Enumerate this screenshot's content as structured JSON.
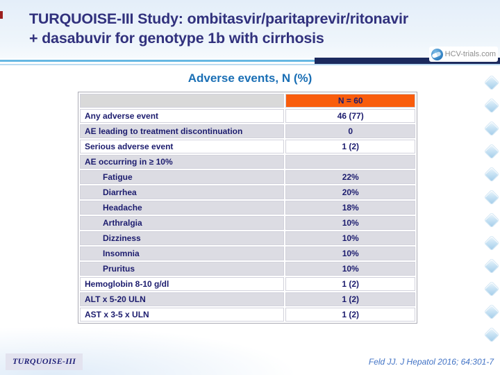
{
  "slide": {
    "title_line1": "TURQUOISE-III Study: ombitasvir/paritaprevir/ritonavir",
    "title_line2": "+ dasabuvir for genotype 1b with cirrhosis",
    "subtitle": "Adverse events, N (%)",
    "logo_text": "HCV-trials.com",
    "footer_label": "TURQUOISE-III",
    "citation": "Feld JJ. J Hepatol 2016; 64:301-7"
  },
  "table": {
    "header": {
      "col1": "",
      "col2": "N = 60"
    },
    "rows": [
      {
        "label": "Any adverse event",
        "value": "46 (77)",
        "shade": "white",
        "indent": false
      },
      {
        "label": "AE leading to treatment discontinuation",
        "value": "0",
        "shade": "gray",
        "indent": false
      },
      {
        "label": "Serious adverse event",
        "value": "1 (2)",
        "shade": "white",
        "indent": false
      },
      {
        "label": "AE occurring in ≥ 10%",
        "value": "",
        "shade": "gray",
        "indent": false
      },
      {
        "label": "Fatigue",
        "value": "22%",
        "shade": "gray",
        "indent": true
      },
      {
        "label": "Diarrhea",
        "value": "20%",
        "shade": "gray",
        "indent": true
      },
      {
        "label": "Headache",
        "value": "18%",
        "shade": "gray",
        "indent": true
      },
      {
        "label": "Arthralgia",
        "value": "10%",
        "shade": "gray",
        "indent": true
      },
      {
        "label": "Dizziness",
        "value": "10%",
        "shade": "gray",
        "indent": true
      },
      {
        "label": "Insomnia",
        "value": "10%",
        "shade": "gray",
        "indent": true
      },
      {
        "label": "Pruritus",
        "value": "10%",
        "shade": "gray",
        "indent": true
      },
      {
        "label": "Hemoglobin 8-10 g/dl",
        "value": "1 (2)",
        "shade": "white",
        "indent": false
      },
      {
        "label": "ALT x 5-20 ULN",
        "value": "1 (2)",
        "shade": "gray",
        "indent": false
      },
      {
        "label": "AST x 3-5 x ULN",
        "value": "1 (2)",
        "shade": "white",
        "indent": false
      }
    ]
  },
  "colors": {
    "orange": "#f95d0d",
    "titleNavy": "#31317d",
    "tableNavy": "#1c1c6e",
    "blue": "#1a6fb5",
    "citeBlue": "#4273c5",
    "teal": "#66b7e2",
    "darkNavy": "#1c2a5e",
    "maroon": "#9b1f1f"
  }
}
